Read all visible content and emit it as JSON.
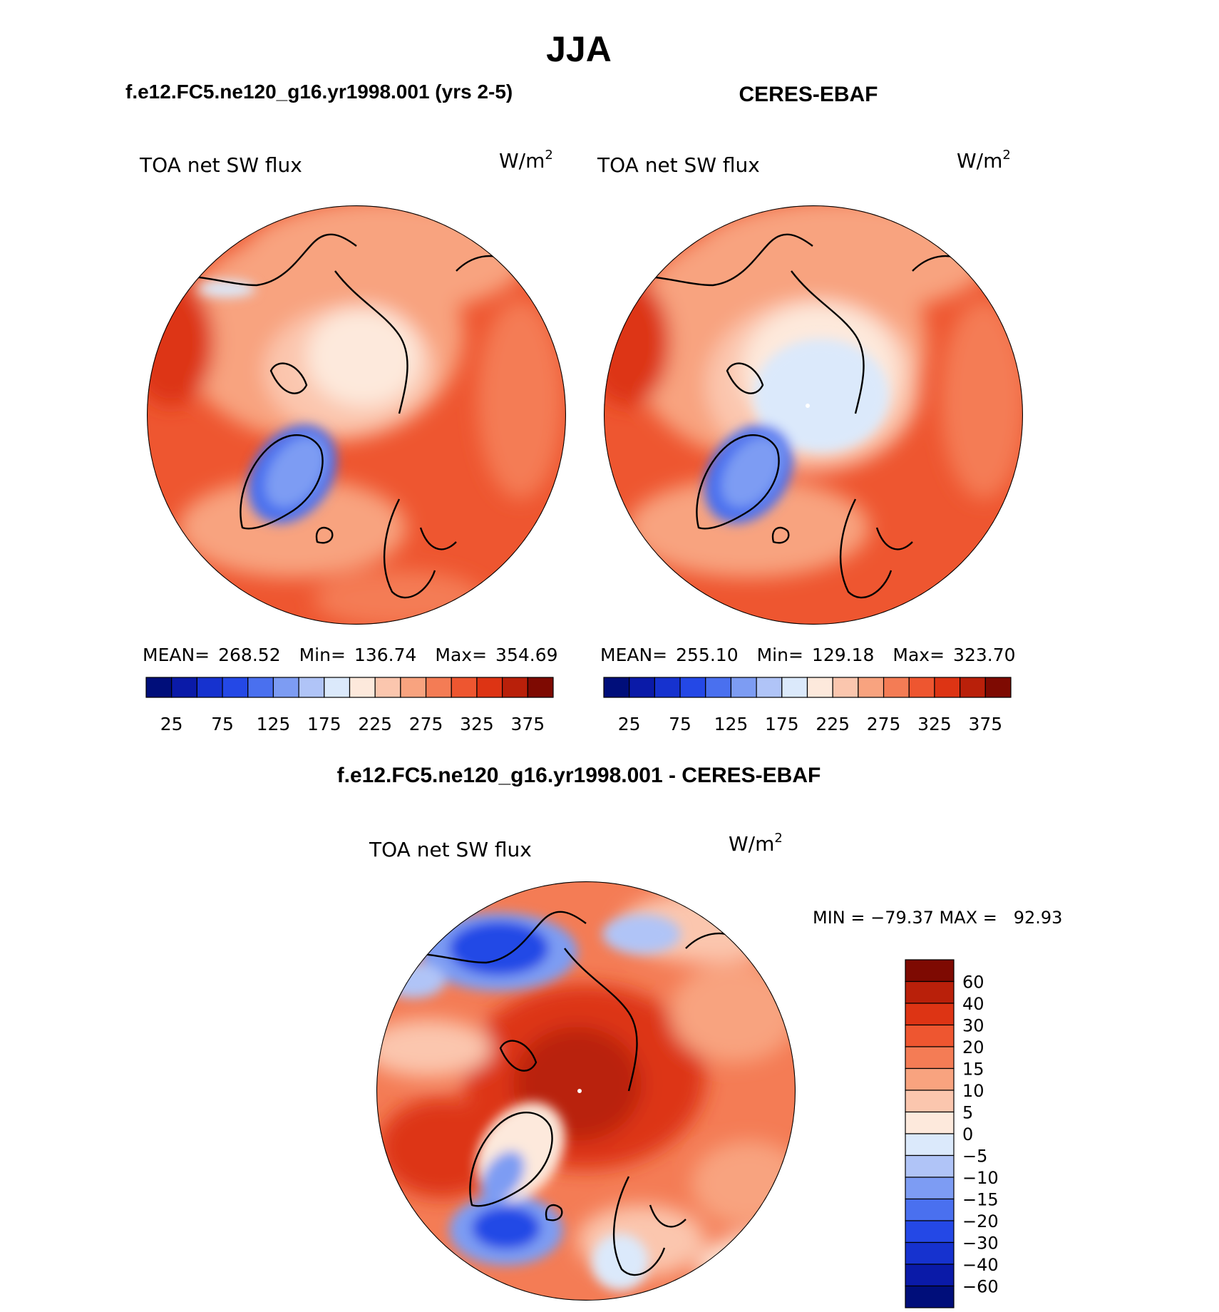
{
  "figure": {
    "season": "JJA",
    "left_title": "f.e12.FC5.ne120_g16.yr1998.001 (yrs 2-5)",
    "right_title": "CERES-EBAF",
    "diff_title": "f.e12.FC5.ne120_g16.yr1998.001 - CERES-EBAF"
  },
  "chart_data": [
    {
      "type": "heatmap",
      "panel": "model",
      "variable": "TOA net SW flux",
      "units": "W/m",
      "units_exponent": "2",
      "stats": {
        "mean_label": "MEAN=",
        "mean": "268.52",
        "min_label": "Min=",
        "min": "136.74",
        "max_label": "Max=",
        "max": "354.69"
      },
      "colorbar": {
        "orientation": "horizontal",
        "tick_labels": [
          "25",
          "75",
          "125",
          "175",
          "225",
          "275",
          "325",
          "375"
        ],
        "colors": [
          "#000e7a",
          "#0a1aa8",
          "#1632cf",
          "#2448e6",
          "#4a70ef",
          "#7d9cf3",
          "#b0c4f7",
          "#dbe9fb",
          "#fde9dc",
          "#fbc6ae",
          "#f8a37f",
          "#f47c55",
          "#ee5630",
          "#dd3414",
          "#b9200a",
          "#7e0a02"
        ]
      }
    },
    {
      "type": "heatmap",
      "panel": "observations",
      "variable": "TOA net SW flux",
      "units": "W/m",
      "units_exponent": "2",
      "stats": {
        "mean_label": "MEAN=",
        "mean": "255.10",
        "min_label": "Min=",
        "min": "129.18",
        "max_label": "Max=",
        "max": "323.70"
      },
      "colorbar": {
        "orientation": "horizontal",
        "tick_labels": [
          "25",
          "75",
          "125",
          "175",
          "225",
          "275",
          "325",
          "375"
        ],
        "colors": [
          "#000e7a",
          "#0a1aa8",
          "#1632cf",
          "#2448e6",
          "#4a70ef",
          "#7d9cf3",
          "#b0c4f7",
          "#dbe9fb",
          "#fde9dc",
          "#fbc6ae",
          "#f8a37f",
          "#f47c55",
          "#ee5630",
          "#dd3414",
          "#b9200a",
          "#7e0a02"
        ]
      }
    },
    {
      "type": "heatmap",
      "panel": "difference",
      "variable": "TOA net SW flux",
      "units": "W/m",
      "units_exponent": "2",
      "stats_text": "MIN = −79.37 MAX =   92.93",
      "colorbar": {
        "orientation": "vertical",
        "tick_labels": [
          "60",
          "40",
          "30",
          "20",
          "15",
          "10",
          "5",
          "0",
          "−5",
          "−10",
          "−15",
          "−20",
          "−30",
          "−40",
          "−60"
        ],
        "colors": [
          "#7e0a02",
          "#b9200a",
          "#dd3414",
          "#ee5630",
          "#f47c55",
          "#f8a37f",
          "#fbc6ae",
          "#fde9dc",
          "#dbe9fb",
          "#b0c4f7",
          "#7d9cf3",
          "#4a70ef",
          "#2448e6",
          "#1632cf",
          "#0a1aa8",
          "#000e7a"
        ]
      }
    }
  ]
}
